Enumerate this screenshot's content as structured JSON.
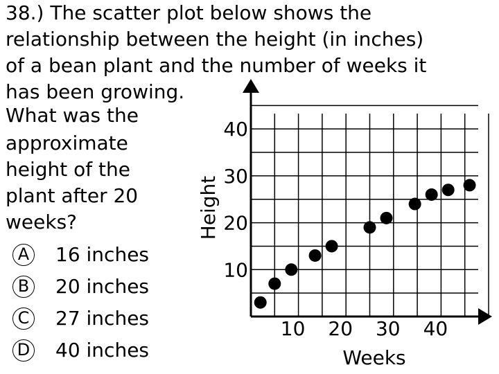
{
  "question": {
    "lines": [
      "38.)  The scatter plot below shows the",
      "relationship between the height (in inches)",
      "of a bean plant and the number of weeks it",
      "has been growing."
    ],
    "prompt": [
      "What was the",
      "approximate",
      "height of the",
      "plant after 20",
      "weeks?"
    ],
    "choices": [
      {
        "letter": "A",
        "text": "16 inches"
      },
      {
        "letter": "B",
        "text": "20 inches"
      },
      {
        "letter": "C",
        "text": "27 inches"
      },
      {
        "letter": "D",
        "text": "40 inches"
      }
    ]
  },
  "chart_data": {
    "type": "scatter",
    "xlabel": "Weeks",
    "ylabel": "Height",
    "xlim": [
      0,
      50
    ],
    "ylim": [
      0,
      48
    ],
    "x_ticks": [
      10,
      20,
      30,
      40
    ],
    "y_ticks": [
      10,
      20,
      30,
      40
    ],
    "grid": true,
    "points": [
      {
        "x": 2,
        "y": 3
      },
      {
        "x": 5,
        "y": 7
      },
      {
        "x": 8.5,
        "y": 10
      },
      {
        "x": 13.5,
        "y": 13
      },
      {
        "x": 17,
        "y": 15
      },
      {
        "x": 25,
        "y": 19
      },
      {
        "x": 28.5,
        "y": 21
      },
      {
        "x": 34.5,
        "y": 24
      },
      {
        "x": 38,
        "y": 26
      },
      {
        "x": 41.5,
        "y": 27
      },
      {
        "x": 46,
        "y": 28
      }
    ]
  }
}
